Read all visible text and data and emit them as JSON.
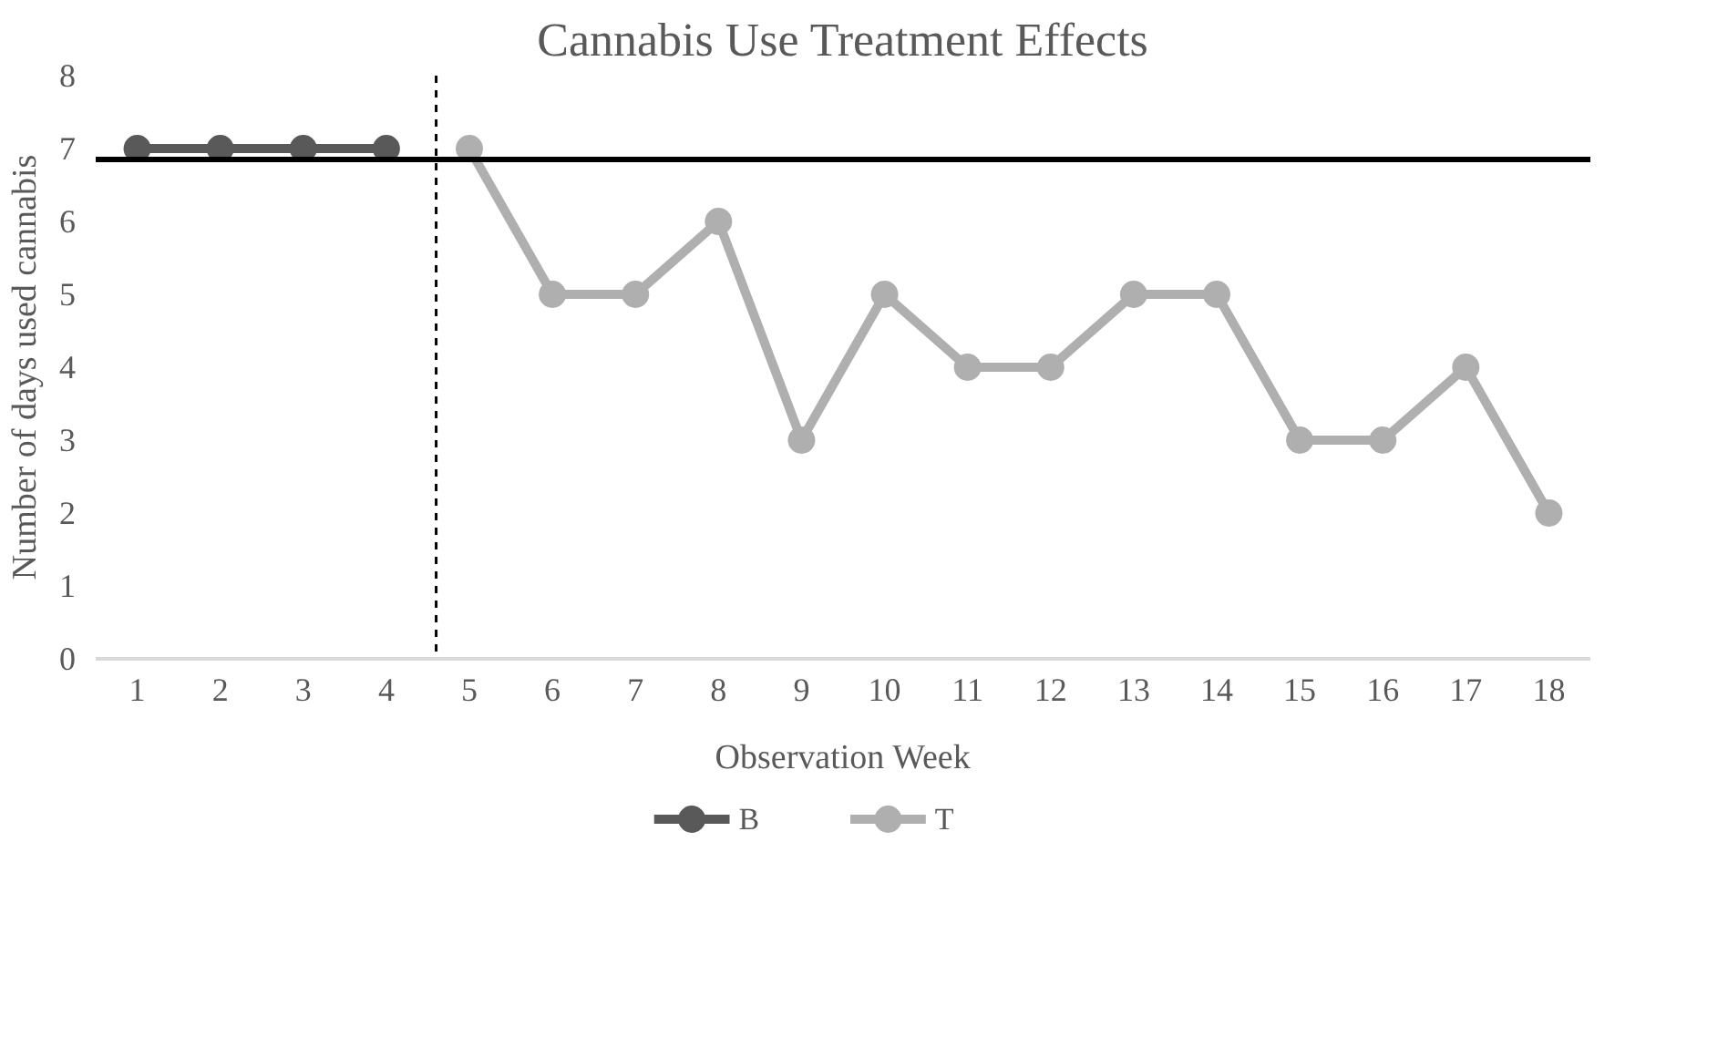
{
  "chart_data": {
    "type": "line",
    "title": "Cannabis Use Treatment Effects",
    "xlabel": "Observation Week",
    "ylabel": "Number of days used cannabis",
    "x": [
      1,
      2,
      3,
      4,
      5,
      6,
      7,
      8,
      9,
      10,
      11,
      12,
      13,
      14,
      15,
      16,
      17,
      18
    ],
    "xlim": [
      0.5,
      18.5
    ],
    "xticks": [
      1,
      2,
      3,
      4,
      5,
      6,
      7,
      8,
      9,
      10,
      11,
      12,
      13,
      14,
      15,
      16,
      17,
      18
    ],
    "ylim": [
      0,
      8
    ],
    "yticks": [
      0,
      1,
      2,
      3,
      4,
      5,
      6,
      7,
      8
    ],
    "series": [
      {
        "name": "B",
        "color": "#595959",
        "values": [
          7,
          7,
          7,
          7,
          null,
          null,
          null,
          null,
          null,
          null,
          null,
          null,
          null,
          null,
          null,
          null,
          null,
          null
        ]
      },
      {
        "name": "T",
        "color": "#afafaf",
        "values": [
          null,
          null,
          null,
          null,
          7,
          5,
          5,
          6,
          3,
          5,
          4,
          4,
          5,
          5,
          3,
          3,
          4,
          2
        ]
      }
    ],
    "ref_lines": [
      {
        "axis": "y",
        "value": 6.85,
        "label": null,
        "color": "#000000",
        "line_style": "solid"
      },
      {
        "axis": "x",
        "value": 4.6,
        "label": null,
        "color": "#000000",
        "line_style": "dashed"
      }
    ],
    "marker": "circle",
    "line_style": "solid",
    "grid": false,
    "legend": "bottom"
  }
}
